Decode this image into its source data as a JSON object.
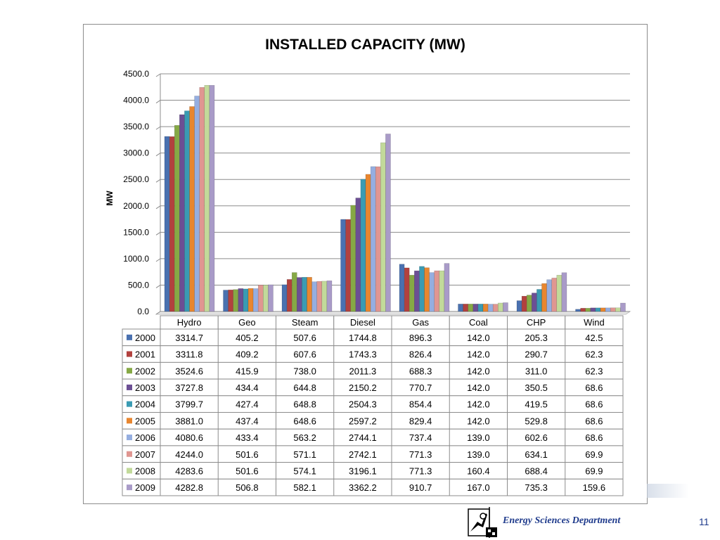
{
  "footer": {
    "department": "Energy Sciences Department",
    "page_number": "11",
    "logo_icon": "department-logo-icon"
  },
  "chart_data": {
    "type": "bar",
    "title": "INSTALLED CAPACITY (MW)",
    "xlabel": "",
    "ylabel": "MW",
    "ylim": [
      0,
      4500
    ],
    "yticks": [
      "0.0",
      "500.0",
      "1000.0",
      "1500.0",
      "2000.0",
      "2500.0",
      "3000.0",
      "3500.0",
      "4000.0",
      "4500.0"
    ],
    "grid": true,
    "legend": "data-table",
    "categories": [
      "Hydro",
      "Geo",
      "Steam",
      "Diesel",
      "Gas",
      "Coal",
      "CHP",
      "Wind"
    ],
    "series": [
      {
        "name": "2000",
        "color": "#4a71b0",
        "values": [
          3314.7,
          405.2,
          507.6,
          1744.8,
          896.3,
          142.0,
          205.3,
          42.5
        ],
        "labels": [
          "3314.7",
          "405.2",
          "507.6",
          "1744.8",
          "896.3",
          "142.0",
          "205.3",
          "42.5"
        ]
      },
      {
        "name": "2001",
        "color": "#b2413e",
        "values": [
          3311.8,
          409.2,
          607.6,
          1743.3,
          826.4,
          142.0,
          290.7,
          62.3
        ],
        "labels": [
          "3311.8",
          "409.2",
          "607.6",
          "1743.3",
          "826.4",
          "142.0",
          "290.7",
          "62.3"
        ]
      },
      {
        "name": "2002",
        "color": "#86a945",
        "values": [
          3524.6,
          415.9,
          738.0,
          2011.3,
          688.3,
          142.0,
          311.0,
          62.3
        ],
        "labels": [
          "3524.6",
          "415.9",
          "738.0",
          "2011.3",
          "688.3",
          "142.0",
          "311.0",
          "62.3"
        ]
      },
      {
        "name": "2003",
        "color": "#6c4f94",
        "values": [
          3727.8,
          434.4,
          644.8,
          2150.2,
          770.7,
          142.0,
          350.5,
          68.6
        ],
        "labels": [
          "3727.8",
          "434.4",
          "644.8",
          "2150.2",
          "770.7",
          "142.0",
          "350.5",
          "68.6"
        ]
      },
      {
        "name": "2004",
        "color": "#3a9bb3",
        "values": [
          3799.7,
          427.4,
          648.8,
          2504.3,
          854.4,
          142.0,
          419.5,
          68.6
        ],
        "labels": [
          "3799.7",
          "427.4",
          "648.8",
          "2504.3",
          "854.4",
          "142.0",
          "419.5",
          "68.6"
        ]
      },
      {
        "name": "2005",
        "color": "#e8862f",
        "values": [
          3881.0,
          437.4,
          648.6,
          2597.2,
          829.4,
          142.0,
          529.8,
          68.6
        ],
        "labels": [
          "3881.0",
          "437.4",
          "648.6",
          "2597.2",
          "829.4",
          "142.0",
          "529.8",
          "68.6"
        ]
      },
      {
        "name": "2006",
        "color": "#95aee0",
        "values": [
          4080.6,
          433.4,
          563.2,
          2744.1,
          737.4,
          139.0,
          602.6,
          68.6
        ],
        "labels": [
          "4080.6",
          "433.4",
          "563.2",
          "2744.1",
          "737.4",
          "139.0",
          "602.6",
          "68.6"
        ]
      },
      {
        "name": "2007",
        "color": "#e09691",
        "values": [
          4244.0,
          501.6,
          571.1,
          2742.1,
          771.3,
          139.0,
          634.1,
          69.9
        ],
        "labels": [
          "4244.0",
          "501.6",
          "571.1",
          "2742.1",
          "771.3",
          "139.0",
          "634.1",
          "69.9"
        ]
      },
      {
        "name": "2008",
        "color": "#c2da9a",
        "values": [
          4283.6,
          501.6,
          574.1,
          3196.1,
          771.3,
          160.4,
          688.4,
          69.9
        ],
        "labels": [
          "4283.6",
          "501.6",
          "574.1",
          "3196.1",
          "771.3",
          "160.4",
          "688.4",
          "69.9"
        ]
      },
      {
        "name": "2009",
        "color": "#a99bc8",
        "values": [
          4282.8,
          506.8,
          582.1,
          3362.2,
          910.7,
          167.0,
          735.3,
          159.6
        ],
        "labels": [
          "4282.8",
          "506.8",
          "582.1",
          "3362.2",
          "910.7",
          "167.0",
          "735.3",
          "159.6"
        ]
      }
    ]
  }
}
